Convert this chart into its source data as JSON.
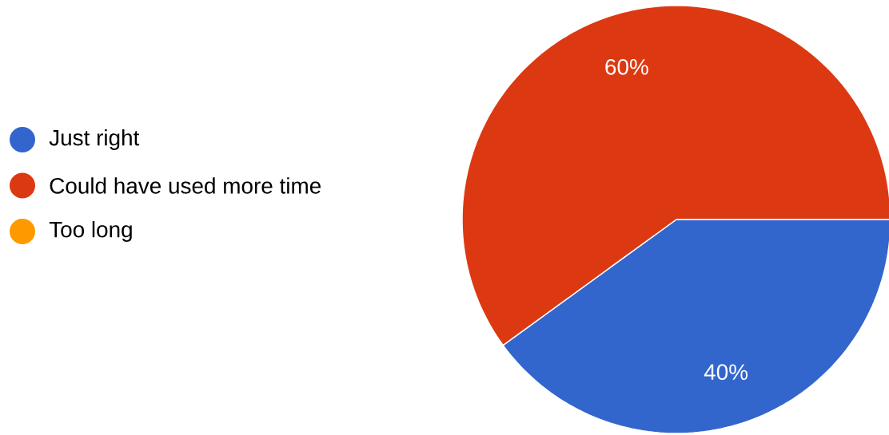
{
  "chart_data": {
    "type": "pie",
    "categories": [
      "Just right",
      "Could have used more time",
      "Too long"
    ],
    "values": [
      40,
      60,
      0
    ],
    "colors": [
      "#3366cc",
      "#dc3912",
      "#ff9900"
    ],
    "value_labels": [
      "40%",
      "60%",
      null
    ],
    "legend": "left"
  }
}
